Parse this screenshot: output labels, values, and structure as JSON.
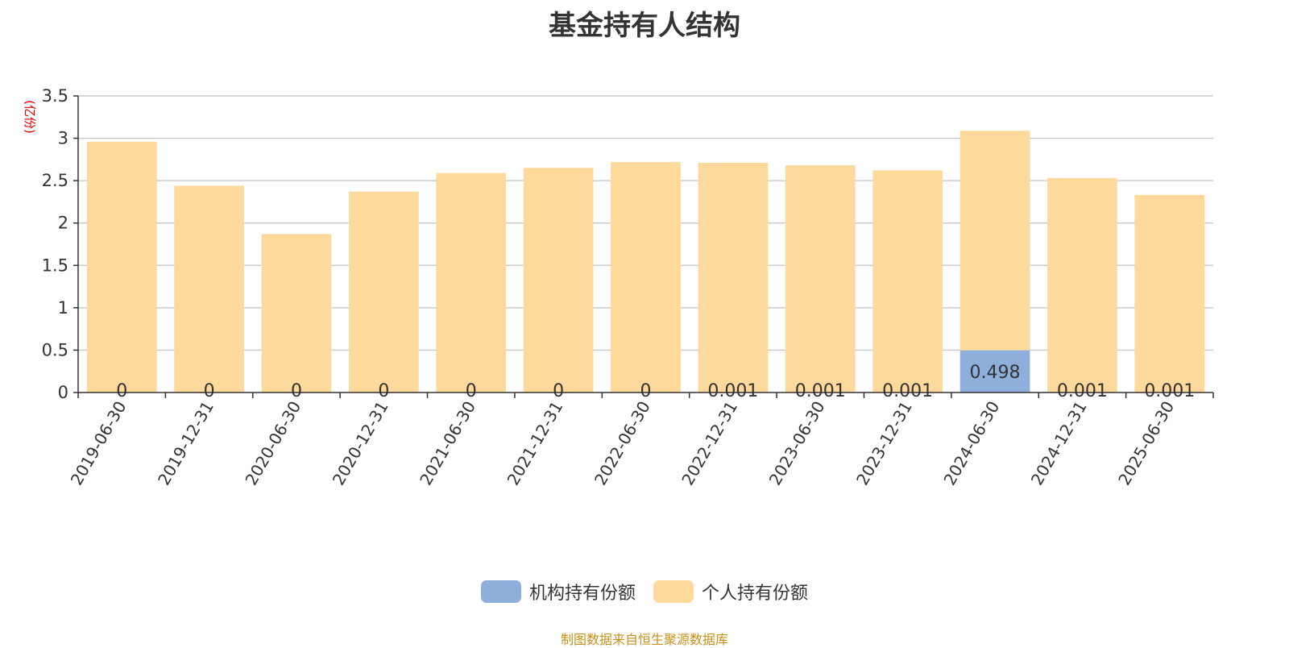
{
  "chart_data": {
    "type": "bar",
    "stacked": true,
    "title": "基金持有人结构",
    "ylabel": "(亿份)",
    "ylim": [
      0,
      3.5
    ],
    "yticks": [
      "0",
      "0.5",
      "1",
      "1.5",
      "2",
      "2.5",
      "3",
      "3.5"
    ],
    "categories": [
      "2019-06-30",
      "2019-12-31",
      "2020-06-30",
      "2020-12-31",
      "2021-06-30",
      "2021-12-31",
      "2022-06-30",
      "2022-12-31",
      "2023-06-30",
      "2023-12-31",
      "2024-06-30",
      "2024-12-31",
      "2025-06-30"
    ],
    "series": [
      {
        "name": "机构持有份额",
        "color": "#8eaedb",
        "values": [
          0,
          0,
          0,
          0,
          0,
          0,
          0,
          0.001,
          0.001,
          0.001,
          0.498,
          0.001,
          0.001
        ],
        "labels": [
          "0",
          "0",
          "0",
          "0",
          "0",
          "0",
          "0",
          "0.001",
          "0.001",
          "0.001",
          "0.498",
          "0.001",
          "0.001"
        ]
      },
      {
        "name": "个人持有份额",
        "color": "#fdd99b",
        "values": [
          2.96,
          2.44,
          1.87,
          2.37,
          2.59,
          2.65,
          2.72,
          2.71,
          2.68,
          2.62,
          2.59,
          2.53,
          2.33
        ]
      }
    ],
    "grid": true,
    "legend_position": "bottom"
  },
  "source_note": "制图数据来自恒生聚源数据库"
}
